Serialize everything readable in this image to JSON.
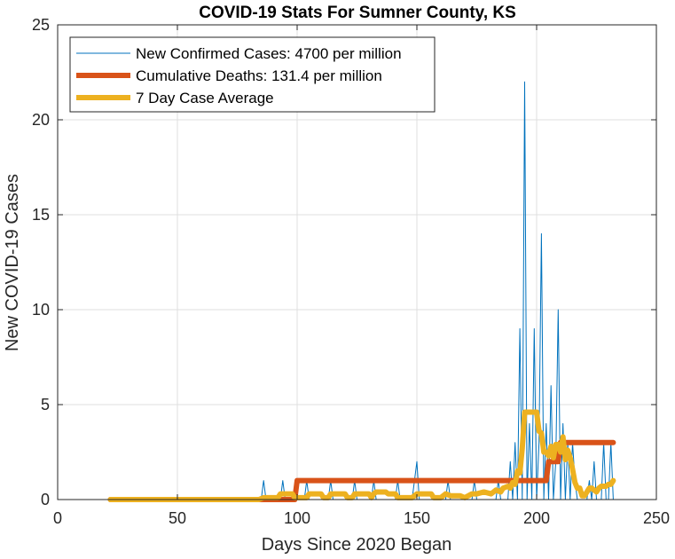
{
  "chart_data": {
    "type": "line",
    "title": "COVID-19 Stats For Sumner County, KS",
    "xlabel": "Days Since 2020 Began",
    "ylabel": "New COVID-19 Cases",
    "xlim": [
      0,
      250
    ],
    "ylim": [
      0,
      25
    ],
    "xticks": [
      0,
      50,
      100,
      150,
      200,
      250
    ],
    "yticks": [
      0,
      5,
      10,
      15,
      20,
      25
    ],
    "grid": true,
    "legend_position": "top-left",
    "series": [
      {
        "name": "New Confirmed Cases: 4700 per million",
        "color": "#0072BD",
        "x": [
          22,
          84,
          85,
          86,
          87,
          88,
          92,
          93,
          94,
          95,
          96,
          97,
          100,
          103,
          104,
          105,
          106,
          110,
          113,
          114,
          115,
          120,
          123,
          124,
          125,
          128,
          131,
          132,
          133,
          134,
          135,
          138,
          141,
          142,
          143,
          144,
          145,
          148,
          150,
          151,
          152,
          153,
          156,
          160,
          162,
          163,
          164,
          165,
          168,
          171,
          173,
          174,
          175,
          176,
          178,
          181,
          183,
          184,
          185,
          186,
          188,
          189,
          190,
          191,
          192,
          193,
          194,
          195,
          196,
          197,
          198,
          199,
          200,
          201,
          202,
          203,
          204,
          205,
          206,
          207,
          208,
          209,
          210,
          211,
          212,
          213,
          214,
          215,
          216,
          217,
          218,
          219,
          220,
          221,
          222,
          223,
          224,
          225,
          226,
          227,
          228,
          229,
          230,
          231,
          232
        ],
        "y": [
          0,
          0,
          0,
          1,
          0,
          0,
          0,
          0,
          1,
          0,
          0,
          0,
          0,
          0,
          1,
          0,
          0,
          0,
          0,
          1,
          0,
          0,
          0,
          1,
          0,
          0,
          0,
          1,
          0,
          0,
          0,
          0,
          0,
          1,
          0,
          0,
          0,
          0,
          2,
          0,
          0,
          0,
          0,
          0,
          0,
          1,
          0,
          0,
          0,
          0,
          0,
          1,
          0,
          0,
          0,
          0,
          0,
          1,
          0,
          0,
          0,
          2,
          0,
          3,
          0,
          9,
          0,
          22,
          0,
          4,
          0,
          9,
          0,
          3,
          14,
          0,
          4,
          0,
          6,
          0,
          2,
          10,
          0,
          4,
          0,
          3,
          0,
          3,
          1,
          0,
          0,
          0,
          0,
          0,
          1,
          0,
          2,
          0,
          0,
          0,
          3,
          0,
          0,
          3,
          0
        ]
      },
      {
        "name": "Cumulative Deaths: 131.4 per million",
        "color": "#D95319",
        "x": [
          22,
          86,
          99,
          100,
          204,
          205,
          209,
          210,
          232
        ],
        "y": [
          0,
          0,
          0,
          1,
          1,
          2,
          2,
          3,
          3
        ]
      },
      {
        "name": "7 Day Case Average",
        "color": "#EDB120",
        "x": [
          22,
          84,
          86,
          92,
          93,
          98,
          99,
          104,
          105,
          110,
          111,
          113,
          114,
          120,
          121,
          123,
          124,
          130,
          131,
          132,
          133,
          137,
          138,
          141,
          142,
          148,
          150,
          156,
          157,
          160,
          162,
          164,
          168,
          170,
          173,
          175,
          178,
          181,
          183,
          185,
          186,
          188,
          189,
          190,
          191,
          192,
          193,
          194,
          195,
          196,
          197,
          198,
          199,
          200,
          201,
          202,
          203,
          204,
          205,
          206,
          207,
          208,
          209,
          210,
          211,
          212,
          213,
          214,
          215,
          216,
          217,
          218,
          219,
          220,
          221,
          222,
          223,
          224,
          225,
          226,
          227,
          228,
          229,
          230,
          231,
          232
        ],
        "y": [
          0,
          0,
          0.1,
          0.1,
          0.3,
          0.3,
          0.1,
          0.1,
          0.3,
          0.3,
          0.1,
          0.1,
          0.3,
          0.3,
          0.1,
          0.1,
          0.3,
          0.3,
          0.1,
          0.3,
          0.4,
          0.4,
          0.3,
          0.3,
          0.1,
          0.1,
          0.3,
          0.3,
          0.1,
          0.1,
          0.3,
          0.2,
          0.2,
          0.1,
          0.3,
          0.3,
          0.4,
          0.3,
          0.5,
          0.4,
          0.6,
          0.7,
          0.6,
          0.9,
          0.8,
          1.5,
          1.4,
          2.7,
          4.6,
          4.6,
          4.6,
          4.6,
          4.6,
          4.6,
          3.6,
          3.5,
          2.5,
          2.5,
          2.3,
          2.8,
          2.2,
          2.9,
          2.9,
          2.5,
          3.3,
          2.1,
          2.6,
          2.2,
          1.6,
          0.9,
          0.6,
          0.6,
          0.2,
          0.2,
          0.4,
          0.6,
          0.6,
          0.5,
          0.4,
          0.6,
          0.7,
          0.7,
          0.7,
          0.8,
          0.8,
          1
        ]
      }
    ]
  }
}
